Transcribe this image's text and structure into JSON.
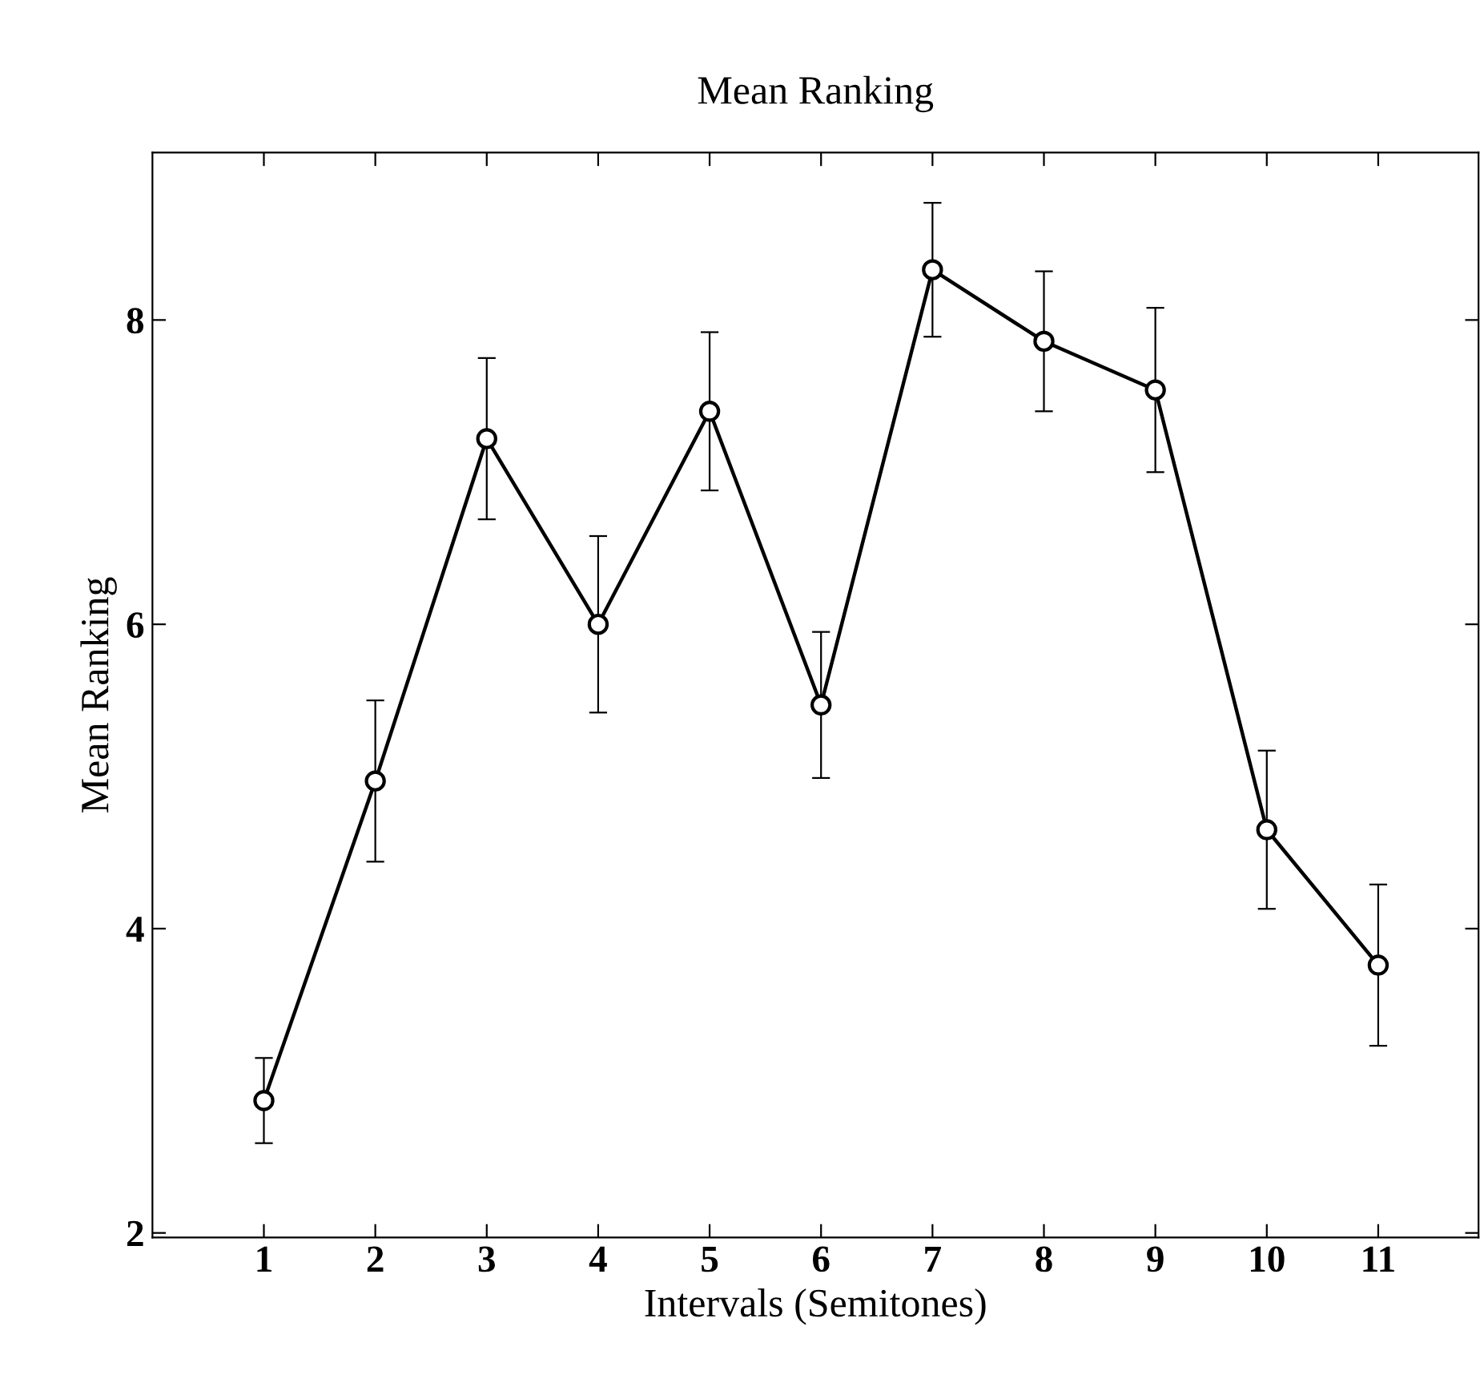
{
  "chart_data": {
    "type": "line",
    "title": "Mean Ranking",
    "xlabel": "Intervals (Semitones)",
    "ylabel": "Mean Ranking",
    "x": [
      1,
      2,
      3,
      4,
      5,
      6,
      7,
      8,
      9,
      10,
      11
    ],
    "series": [
      {
        "color": "#000000",
        "values": [
          2.87,
          4.97,
          7.22,
          6.0,
          7.4,
          5.47,
          8.33,
          7.86,
          7.54,
          4.65,
          3.76
        ],
        "errors": [
          0.28,
          0.53,
          0.53,
          0.58,
          0.52,
          0.48,
          0.44,
          0.46,
          0.54,
          0.52,
          0.53
        ]
      }
    ],
    "xlim": [
      0,
      11.9
    ],
    "ylim": [
      1.97,
      9.1
    ],
    "xticks": [
      1,
      2,
      3,
      4,
      5,
      6,
      7,
      8,
      9,
      10,
      11
    ],
    "yticks": [
      2,
      4,
      6,
      8
    ],
    "marker": "circle",
    "line_style": "solid",
    "grid": false,
    "legend": false
  }
}
